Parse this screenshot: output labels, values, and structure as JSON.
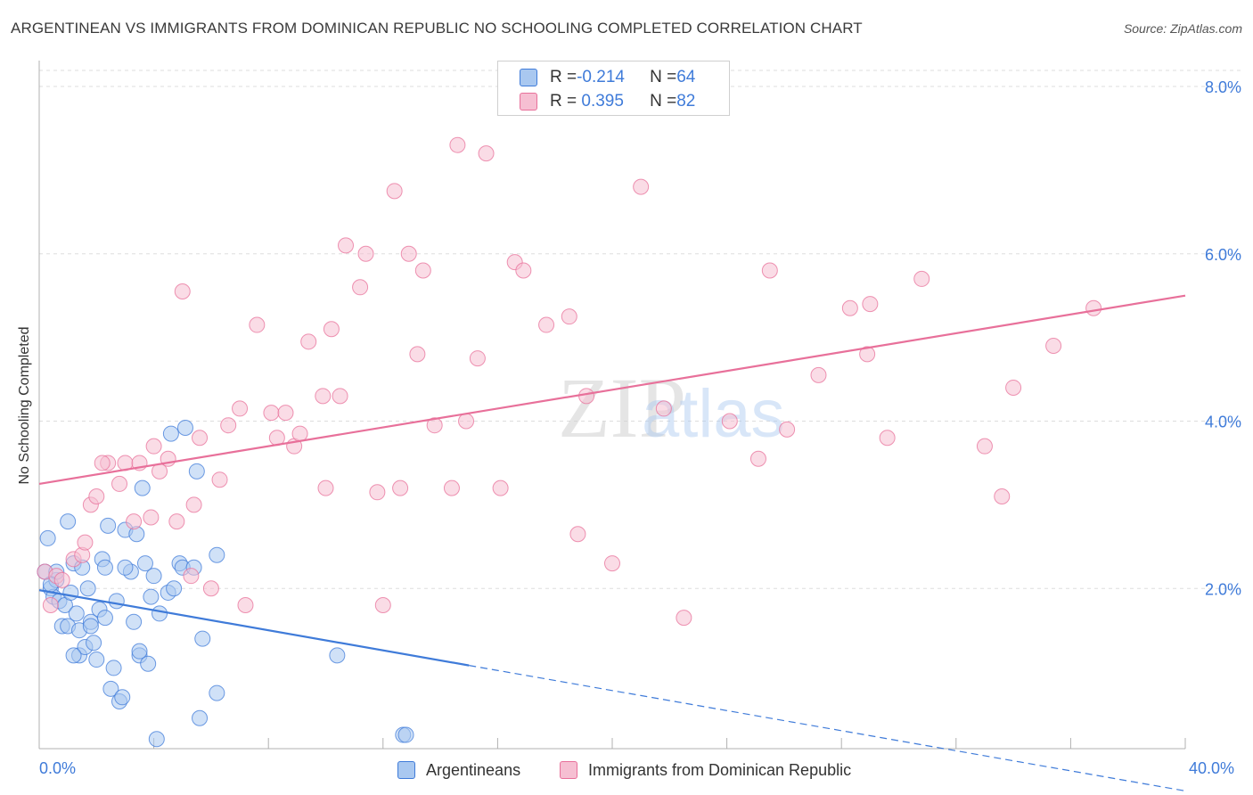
{
  "header": {
    "title": "ARGENTINEAN VS IMMIGRANTS FROM DOMINICAN REPUBLIC NO SCHOOLING COMPLETED CORRELATION CHART",
    "source": "Source: ZipAtlas.com"
  },
  "watermark": {
    "part1": "ZIP",
    "part2": "atlas"
  },
  "colors": {
    "blue": "#3f7bd9",
    "blue_fill": "#a9c8f0",
    "pink": "#e8709a",
    "pink_fill": "#f6bfd2",
    "grid": "#dddddd",
    "axis_text": "#3f7bd9"
  },
  "legend": {
    "rows": [
      {
        "r_label": "R = ",
        "r_value": "-0.214",
        "n_label": "N = ",
        "n_value": "64"
      },
      {
        "r_label": "R = ",
        "r_value": " 0.395",
        "n_label": "N = ",
        "n_value": "82"
      }
    ]
  },
  "chart_data": {
    "type": "scatter",
    "xlabel": "",
    "ylabel": "No Schooling Completed",
    "xlim": [
      0,
      40
    ],
    "ylim": [
      0,
      8.5
    ],
    "x_tick_labels": {
      "min": "0.0%",
      "max": "40.0%"
    },
    "y_ticks": [
      {
        "value": 2,
        "label": "2.0%"
      },
      {
        "value": 4,
        "label": "4.0%"
      },
      {
        "value": 6,
        "label": "6.0%"
      },
      {
        "value": 8,
        "label": "8.0%"
      }
    ],
    "grid": true,
    "series": [
      {
        "name": "Argentineans",
        "color": "#3f7bd9",
        "fill": "#a9c8f0",
        "R": -0.214,
        "N": 64,
        "trend": {
          "x0": 0,
          "y0": 1.98,
          "x1": 15,
          "y1": 1.08,
          "dash_to_x": 40
        },
        "points": [
          [
            0.3,
            2.6
          ],
          [
            0.2,
            2.2
          ],
          [
            0.4,
            2.0
          ],
          [
            0.5,
            1.9
          ],
          [
            0.6,
            2.1
          ],
          [
            0.7,
            1.85
          ],
          [
            0.8,
            1.55
          ],
          [
            0.9,
            1.8
          ],
          [
            1.0,
            2.8
          ],
          [
            1.1,
            1.95
          ],
          [
            1.2,
            2.3
          ],
          [
            1.0,
            1.55
          ],
          [
            1.3,
            1.7
          ],
          [
            1.4,
            1.5
          ],
          [
            1.5,
            2.25
          ],
          [
            1.4,
            1.2
          ],
          [
            1.6,
            1.3
          ],
          [
            1.7,
            2.0
          ],
          [
            1.8,
            1.6
          ],
          [
            1.9,
            1.35
          ],
          [
            2.0,
            1.15
          ],
          [
            2.1,
            1.75
          ],
          [
            2.2,
            2.35
          ],
          [
            2.3,
            1.65
          ],
          [
            2.4,
            2.75
          ],
          [
            2.5,
            0.8
          ],
          [
            2.6,
            1.05
          ],
          [
            2.7,
            1.85
          ],
          [
            2.8,
            0.65
          ],
          [
            2.9,
            0.7
          ],
          [
            3.0,
            2.7
          ],
          [
            3.2,
            2.2
          ],
          [
            3.3,
            1.6
          ],
          [
            3.4,
            2.65
          ],
          [
            3.5,
            1.2
          ],
          [
            3.6,
            3.2
          ],
          [
            3.7,
            2.3
          ],
          [
            3.8,
            1.1
          ],
          [
            3.9,
            1.9
          ],
          [
            4.0,
            2.15
          ],
          [
            4.1,
            0.2
          ],
          [
            4.2,
            1.7
          ],
          [
            4.5,
            1.95
          ],
          [
            4.6,
            3.85
          ],
          [
            4.7,
            2.0
          ],
          [
            4.9,
            2.3
          ],
          [
            5.0,
            2.25
          ],
          [
            5.1,
            3.92
          ],
          [
            5.4,
            2.25
          ],
          [
            5.5,
            3.4
          ],
          [
            5.6,
            0.45
          ],
          [
            5.7,
            1.4
          ],
          [
            6.2,
            2.4
          ],
          [
            6.2,
            0.75
          ],
          [
            10.4,
            1.2
          ],
          [
            12.7,
            0.25
          ],
          [
            12.8,
            0.25
          ],
          [
            1.2,
            1.2
          ],
          [
            0.6,
            2.2
          ],
          [
            3.5,
            1.25
          ],
          [
            1.8,
            1.55
          ],
          [
            2.3,
            2.25
          ],
          [
            0.4,
            2.05
          ],
          [
            3.0,
            2.25
          ]
        ]
      },
      {
        "name": "Immigrants from Dominican Republic",
        "color": "#e8709a",
        "fill": "#f6bfd2",
        "R": 0.395,
        "N": 82,
        "trend": {
          "x0": 0,
          "y0": 3.25,
          "x1": 40,
          "y1": 5.5
        },
        "points": [
          [
            0.2,
            2.2
          ],
          [
            0.4,
            1.8
          ],
          [
            0.6,
            2.15
          ],
          [
            0.8,
            2.1
          ],
          [
            1.2,
            2.35
          ],
          [
            1.5,
            2.4
          ],
          [
            1.8,
            3.0
          ],
          [
            2.0,
            3.1
          ],
          [
            2.4,
            3.5
          ],
          [
            2.8,
            3.25
          ],
          [
            3.0,
            3.5
          ],
          [
            3.3,
            2.8
          ],
          [
            3.5,
            3.5
          ],
          [
            4.0,
            3.7
          ],
          [
            4.2,
            3.4
          ],
          [
            4.5,
            3.55
          ],
          [
            4.8,
            2.8
          ],
          [
            5.0,
            5.55
          ],
          [
            5.3,
            2.15
          ],
          [
            5.4,
            3.0
          ],
          [
            5.6,
            3.8
          ],
          [
            6.0,
            2.0
          ],
          [
            6.3,
            3.3
          ],
          [
            6.6,
            3.95
          ],
          [
            7.0,
            4.15
          ],
          [
            7.2,
            1.8
          ],
          [
            7.6,
            5.15
          ],
          [
            8.1,
            4.1
          ],
          [
            8.3,
            3.8
          ],
          [
            8.6,
            4.1
          ],
          [
            8.9,
            3.7
          ],
          [
            9.1,
            3.85
          ],
          [
            9.4,
            4.95
          ],
          [
            9.9,
            4.3
          ],
          [
            10.0,
            3.2
          ],
          [
            10.2,
            5.1
          ],
          [
            10.5,
            4.3
          ],
          [
            10.7,
            6.1
          ],
          [
            11.2,
            5.6
          ],
          [
            11.4,
            6.0
          ],
          [
            11.8,
            3.15
          ],
          [
            12.0,
            1.8
          ],
          [
            12.4,
            6.75
          ],
          [
            12.6,
            3.2
          ],
          [
            12.9,
            6.0
          ],
          [
            13.2,
            4.8
          ],
          [
            13.4,
            5.8
          ],
          [
            13.8,
            3.95
          ],
          [
            14.4,
            3.2
          ],
          [
            14.6,
            7.3
          ],
          [
            14.9,
            4.0
          ],
          [
            15.3,
            4.75
          ],
          [
            15.6,
            7.2
          ],
          [
            16.1,
            3.2
          ],
          [
            16.6,
            5.9
          ],
          [
            16.9,
            5.8
          ],
          [
            17.7,
            5.15
          ],
          [
            18.5,
            5.25
          ],
          [
            18.8,
            2.65
          ],
          [
            19.1,
            4.3
          ],
          [
            20.0,
            2.3
          ],
          [
            21.0,
            6.8
          ],
          [
            21.8,
            4.15
          ],
          [
            22.5,
            1.65
          ],
          [
            24.1,
            4.0
          ],
          [
            25.1,
            3.55
          ],
          [
            25.5,
            5.8
          ],
          [
            26.1,
            3.9
          ],
          [
            27.2,
            4.55
          ],
          [
            28.3,
            5.35
          ],
          [
            28.9,
            4.8
          ],
          [
            29.0,
            5.4
          ],
          [
            29.6,
            3.8
          ],
          [
            30.8,
            5.7
          ],
          [
            33.0,
            3.7
          ],
          [
            33.6,
            3.1
          ],
          [
            34.0,
            4.4
          ],
          [
            35.4,
            4.9
          ],
          [
            36.8,
            5.35
          ],
          [
            3.9,
            2.85
          ],
          [
            1.6,
            2.55
          ],
          [
            2.2,
            3.5
          ]
        ]
      }
    ]
  }
}
